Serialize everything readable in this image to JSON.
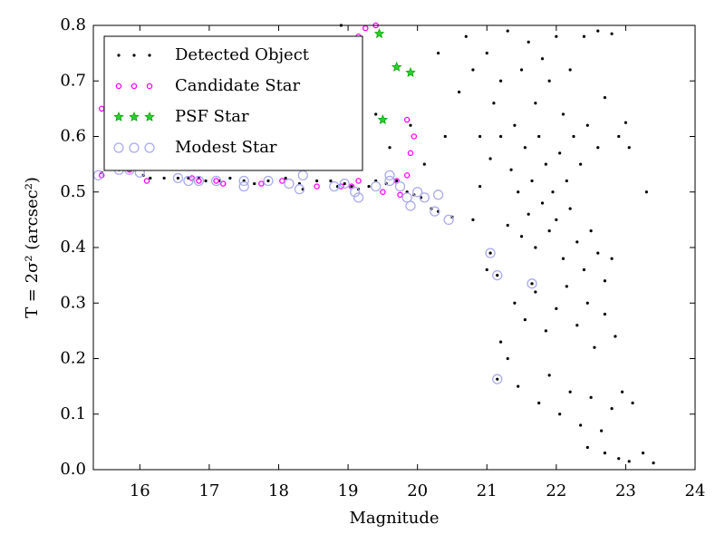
{
  "chart_data": {
    "type": "scatter",
    "xlabel": "Magnitude",
    "ylabel": "T = 2σ² (arcsec²)",
    "xlim": [
      15.33,
      24
    ],
    "ylim": [
      0,
      0.8
    ],
    "xticks": [
      16,
      17,
      18,
      19,
      20,
      21,
      22,
      23,
      24
    ],
    "yticks": [
      {
        "value": 0,
        "label": "0.0"
      },
      0.1,
      0.2,
      0.3,
      0.4,
      0.5,
      0.6,
      0.7,
      0.8
    ],
    "legend": "upper left",
    "series": [
      {
        "name": "Detected Object",
        "color": "#000000",
        "marker": "dot",
        "x": [
          15.45,
          15.7,
          15.85,
          16.05,
          16.15,
          16.35,
          16.55,
          16.7,
          16.85,
          16.95,
          17.15,
          17.3,
          17.5,
          17.65,
          17.85,
          18.1,
          18.3,
          18.35,
          18.55,
          18.75,
          18.85,
          18.95,
          19.05,
          19.15,
          19.3,
          19.4,
          19.55,
          19.7,
          19.85,
          19.95,
          20.05,
          20.2,
          20.3,
          20.5,
          21.05,
          21.15,
          21.15,
          21.65,
          18.9,
          19.05,
          19.4,
          19.6,
          19.9,
          20.1,
          20.3,
          20.4,
          20.6,
          20.7,
          20.8,
          20.9,
          21.0,
          21.1,
          21.2,
          21.3,
          21.4,
          21.5,
          21.6,
          21.7,
          21.8,
          21.9,
          22.0,
          22.1,
          22.2,
          22.4,
          22.6,
          22.8,
          21.05,
          21.2,
          21.35,
          21.45,
          21.55,
          21.65,
          21.75,
          21.85,
          21.95,
          22.05,
          22.15,
          22.25,
          22.35,
          22.45,
          22.6,
          22.7,
          22.9,
          23.0,
          23.05,
          21.3,
          21.5,
          21.6,
          21.7,
          21.8,
          21.9,
          22.0,
          22.1,
          22.2,
          22.3,
          22.4,
          22.5,
          22.6,
          22.7,
          22.8,
          21.4,
          21.55,
          21.7,
          21.85,
          22.0,
          22.15,
          22.3,
          22.45,
          22.55,
          22.7,
          22.85,
          21.3,
          21.45,
          21.75,
          21.9,
          22.05,
          22.2,
          22.35,
          22.5,
          22.65,
          22.8,
          22.95,
          23.1,
          22.45,
          22.7,
          22.9,
          23.05,
          23.25,
          23.4,
          23.3,
          21.2,
          20.9,
          20.8,
          21.0
        ],
        "y": [
          0.535,
          0.54,
          0.54,
          0.53,
          0.525,
          0.525,
          0.525,
          0.525,
          0.525,
          0.52,
          0.52,
          0.525,
          0.52,
          0.515,
          0.52,
          0.525,
          0.515,
          0.505,
          0.52,
          0.52,
          0.51,
          0.515,
          0.51,
          0.505,
          0.51,
          0.52,
          0.515,
          0.52,
          0.5,
          0.495,
          0.49,
          0.47,
          0.465,
          0.455,
          0.39,
          0.35,
          0.163,
          0.335,
          0.8,
          0.72,
          0.64,
          0.58,
          0.62,
          0.55,
          0.75,
          0.6,
          0.68,
          0.78,
          0.72,
          0.6,
          0.75,
          0.66,
          0.7,
          0.79,
          0.62,
          0.72,
          0.77,
          0.66,
          0.74,
          0.7,
          0.78,
          0.64,
          0.72,
          0.78,
          0.79,
          0.785,
          0.56,
          0.6,
          0.54,
          0.5,
          0.58,
          0.52,
          0.6,
          0.55,
          0.5,
          0.57,
          0.52,
          0.6,
          0.55,
          0.62,
          0.58,
          0.67,
          0.6,
          0.625,
          0.58,
          0.44,
          0.42,
          0.46,
          0.4,
          0.48,
          0.43,
          0.45,
          0.38,
          0.47,
          0.41,
          0.36,
          0.43,
          0.39,
          0.34,
          0.38,
          0.3,
          0.27,
          0.32,
          0.25,
          0.29,
          0.33,
          0.26,
          0.3,
          0.22,
          0.28,
          0.24,
          0.2,
          0.15,
          0.12,
          0.17,
          0.1,
          0.14,
          0.08,
          0.13,
          0.07,
          0.11,
          0.14,
          0.12,
          0.04,
          0.03,
          0.02,
          0.015,
          0.03,
          0.012,
          0.5,
          0.23,
          0.51,
          0.45,
          0.36
        ]
      },
      {
        "name": "Candidate Star",
        "color": "#ff00ff",
        "marker": "ring",
        "x": [
          15.45,
          15.45,
          15.85,
          16.1,
          16.75,
          16.85,
          17.1,
          17.2,
          17.75,
          18.05,
          18.55,
          18.9,
          19.05,
          19.15,
          19.25,
          19.15,
          19.4,
          19.5,
          19.7,
          19.75,
          19.85,
          19.9,
          19.85,
          19.95
        ],
        "y": [
          0.53,
          0.65,
          0.54,
          0.52,
          0.525,
          0.52,
          0.52,
          0.515,
          0.515,
          0.52,
          0.51,
          0.51,
          0.51,
          0.52,
          0.795,
          0.78,
          0.8,
          0.5,
          0.52,
          0.495,
          0.53,
          0.57,
          0.63,
          0.6
        ]
      },
      {
        "name": "PSF Star",
        "color": "#00aa00",
        "marker": "star",
        "x": [
          19.45,
          19.7,
          19.9,
          19.5
        ],
        "y": [
          0.785,
          0.725,
          0.715,
          0.63
        ]
      },
      {
        "name": "Modest Star",
        "color": "#aaaaee",
        "marker": "circle",
        "x": [
          15.4,
          15.7,
          15.85,
          16.0,
          16.55,
          16.7,
          16.85,
          17.1,
          17.5,
          17.5,
          17.85,
          18.15,
          18.3,
          18.35,
          18.8,
          18.95,
          19.1,
          19.15,
          19.4,
          19.6,
          19.75,
          19.85,
          19.9,
          20.0,
          20.1,
          20.25,
          20.45,
          21.05,
          21.15,
          21.15,
          21.65,
          19.6,
          20.3
        ],
        "y": [
          0.53,
          0.54,
          0.54,
          0.535,
          0.525,
          0.52,
          0.52,
          0.52,
          0.52,
          0.51,
          0.52,
          0.515,
          0.505,
          0.53,
          0.51,
          0.515,
          0.5,
          0.49,
          0.51,
          0.52,
          0.51,
          0.49,
          0.475,
          0.5,
          0.49,
          0.465,
          0.45,
          0.39,
          0.35,
          0.163,
          0.335,
          0.53,
          0.495
        ]
      }
    ]
  }
}
